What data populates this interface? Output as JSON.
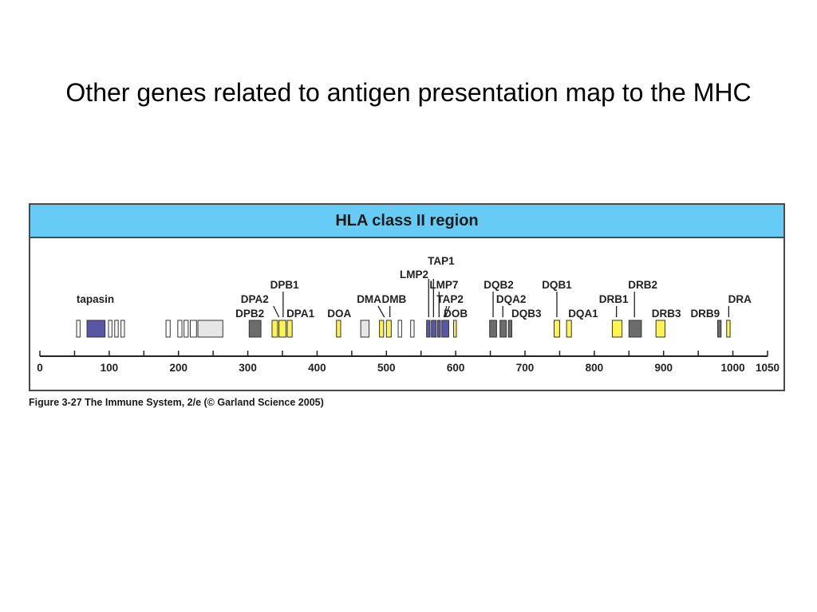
{
  "slide": {
    "title": "Other genes related to antigen presentation map to the MHC"
  },
  "figure": {
    "header": "HLA class II region",
    "caption": "Figure 3-27  The Immune System, 2/e (© Garland Science 2005)",
    "colors": {
      "header_bg": "#66ccf5",
      "frame": "#4a4a4a",
      "blue_gene": "#5a56a6",
      "yellow_gene": "#fff44f",
      "dark_gene": "#6c6c6c",
      "light_gene": "#e6e6e6",
      "white_gene": "#ffffff"
    },
    "axis": {
      "min": 0,
      "max": 1050,
      "ticks": [
        0,
        100,
        200,
        300,
        400,
        500,
        600,
        700,
        800,
        900,
        1000,
        1050
      ],
      "minor_step": 50
    },
    "gene_blocks": [
      {
        "start": 53,
        "end": 58,
        "color": "white"
      },
      {
        "start": 68,
        "end": 94,
        "color": "blue"
      },
      {
        "start": 99,
        "end": 104,
        "color": "white"
      },
      {
        "start": 108,
        "end": 113,
        "color": "white"
      },
      {
        "start": 117,
        "end": 122,
        "color": "white"
      },
      {
        "start": 182,
        "end": 188,
        "color": "white"
      },
      {
        "start": 199,
        "end": 205,
        "color": "white"
      },
      {
        "start": 208,
        "end": 214,
        "color": "white"
      },
      {
        "start": 217,
        "end": 226,
        "color": "white"
      },
      {
        "start": 228,
        "end": 264,
        "color": "light"
      },
      {
        "start": 302,
        "end": 319,
        "color": "dark"
      },
      {
        "start": 335,
        "end": 343,
        "color": "yellow"
      },
      {
        "start": 345,
        "end": 355,
        "color": "yellow"
      },
      {
        "start": 357,
        "end": 364,
        "color": "yellow"
      },
      {
        "start": 428,
        "end": 434,
        "color": "yellow"
      },
      {
        "start": 463,
        "end": 475,
        "color": "light"
      },
      {
        "start": 490,
        "end": 496,
        "color": "yellow"
      },
      {
        "start": 500,
        "end": 507,
        "color": "yellow"
      },
      {
        "start": 517,
        "end": 522,
        "color": "white"
      },
      {
        "start": 535,
        "end": 540,
        "color": "white"
      },
      {
        "start": 558,
        "end": 563,
        "color": "blue"
      },
      {
        "start": 565,
        "end": 572,
        "color": "blue"
      },
      {
        "start": 574,
        "end": 578,
        "color": "blue"
      },
      {
        "start": 580,
        "end": 590,
        "color": "blue"
      },
      {
        "start": 597,
        "end": 601,
        "color": "yellow"
      },
      {
        "start": 649,
        "end": 659,
        "color": "dark"
      },
      {
        "start": 664,
        "end": 673,
        "color": "dark"
      },
      {
        "start": 676,
        "end": 681,
        "color": "dark"
      },
      {
        "start": 742,
        "end": 750,
        "color": "yellow"
      },
      {
        "start": 760,
        "end": 767,
        "color": "yellow"
      },
      {
        "start": 826,
        "end": 840,
        "color": "yellow"
      },
      {
        "start": 850,
        "end": 868,
        "color": "dark"
      },
      {
        "start": 889,
        "end": 902,
        "color": "yellow"
      },
      {
        "start": 978,
        "end": 983,
        "color": "dark"
      },
      {
        "start": 991,
        "end": 996,
        "color": "yellow"
      }
    ],
    "gene_labels": [
      {
        "text": "tapasin",
        "pos": 80,
        "row": 4
      },
      {
        "text": "DPB2",
        "pos": 303,
        "row": 5
      },
      {
        "text": "DPA2",
        "pos": 310,
        "row": 4
      },
      {
        "text": "DPB1",
        "pos": 353,
        "row": 3
      },
      {
        "text": "DPA1",
        "pos": 376,
        "row": 5
      },
      {
        "text": "DOA",
        "pos": 432,
        "row": 5
      },
      {
        "text": "DMA",
        "pos": 475,
        "row": 4
      },
      {
        "text": "DMB",
        "pos": 511,
        "row": 4
      },
      {
        "text": "LMP2",
        "pos": 540,
        "row": 2
      },
      {
        "text": "TAP1",
        "pos": 579,
        "row": 1
      },
      {
        "text": "LMP7",
        "pos": 583,
        "row": 3
      },
      {
        "text": "TAP2",
        "pos": 592,
        "row": 4
      },
      {
        "text": "DOB",
        "pos": 600,
        "row": 5
      },
      {
        "text": "DQB2",
        "pos": 662,
        "row": 3
      },
      {
        "text": "DQA2",
        "pos": 680,
        "row": 4
      },
      {
        "text": "DQB3",
        "pos": 702,
        "row": 5
      },
      {
        "text": "DQB1",
        "pos": 746,
        "row": 3
      },
      {
        "text": "DQA1",
        "pos": 784,
        "row": 5
      },
      {
        "text": "DRB1",
        "pos": 828,
        "row": 4
      },
      {
        "text": "DRB2",
        "pos": 870,
        "row": 3
      },
      {
        "text": "DRB3",
        "pos": 904,
        "row": 5
      },
      {
        "text": "DRB9",
        "pos": 960,
        "row": 5
      },
      {
        "text": "DRA",
        "pos": 1010,
        "row": 4
      }
    ],
    "leader_lines": [
      {
        "x1": 337,
        "x2": 345,
        "kind": "slash-back",
        "row": 5
      },
      {
        "x1": 351,
        "x2": 351,
        "kind": "vertical",
        "row": 4
      },
      {
        "x1": 488,
        "x2": 497,
        "kind": "slash-back",
        "row": 5
      },
      {
        "x1": 505,
        "x2": 505,
        "kind": "vertical",
        "row": 5
      },
      {
        "x1": 561,
        "x2": 561,
        "kind": "vertical",
        "row": 3
      },
      {
        "x1": 568,
        "x2": 568,
        "kind": "vertical",
        "row": 2
      },
      {
        "x1": 576,
        "x2": 576,
        "kind": "vertical",
        "row": 4
      },
      {
        "x1": 587,
        "x2": 583,
        "kind": "slash-fwd",
        "row": 5
      },
      {
        "x1": 591,
        "x2": 585,
        "kind": "slash-fwd",
        "row": 6
      },
      {
        "x1": 654,
        "x2": 654,
        "kind": "vertical",
        "row": 4
      },
      {
        "x1": 668,
        "x2": 668,
        "kind": "vertical",
        "row": 5
      },
      {
        "x1": 746,
        "x2": 746,
        "kind": "vertical",
        "row": 4
      },
      {
        "x1": 832,
        "x2": 832,
        "kind": "vertical",
        "row": 5
      },
      {
        "x1": 858,
        "x2": 858,
        "kind": "vertical",
        "row": 4
      },
      {
        "x1": 994,
        "x2": 994,
        "kind": "vertical",
        "row": 5
      }
    ]
  }
}
